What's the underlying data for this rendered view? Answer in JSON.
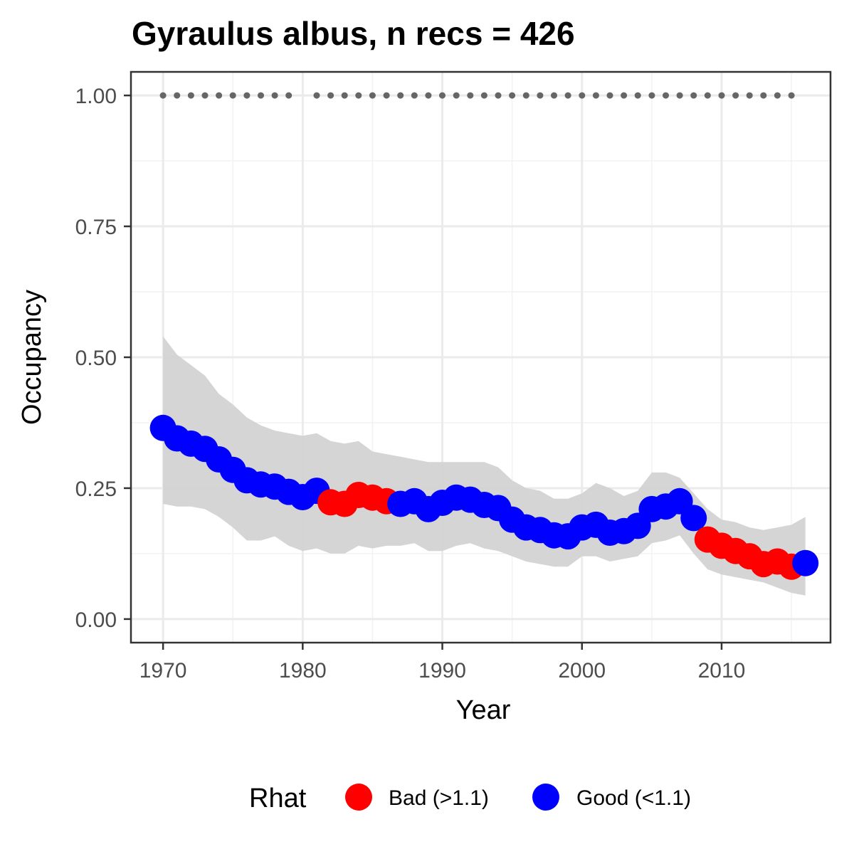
{
  "chart_data": {
    "type": "line",
    "title": "Gyraulus albus, n recs = 426",
    "xlabel": "Year",
    "ylabel": "Occupancy",
    "xlim": [
      1967.2,
      1918.0
    ],
    "ylim": [
      -0.045,
      1.045
    ],
    "x_ticks": [
      1970,
      1980,
      1990,
      2000,
      2010
    ],
    "x_tick_labels": [
      "1970",
      "1980",
      "1990",
      "2000",
      "2010"
    ],
    "y_ticks": [
      0,
      0.25,
      0.5,
      0.75,
      1.0
    ],
    "y_tick_labels": [
      "0.00",
      "0.25",
      "0.50",
      "0.75",
      "1.00"
    ],
    "grid": true,
    "legend": {
      "title": "Rhat",
      "position": "bottom",
      "entries": [
        {
          "label": "Bad (>1.1)",
          "color": "#ff0000"
        },
        {
          "label": "Good (<1.1)",
          "color": "#0000ff"
        }
      ]
    },
    "colors": {
      "bad": "#ff0000",
      "good": "#0000ff",
      "ribbon": "#d3d3d3",
      "record_dots": "#666666"
    },
    "series": [
      {
        "name": "Occupancy",
        "x": [
          1970,
          1971,
          1972,
          1973,
          1974,
          1975,
          1976,
          1977,
          1978,
          1979,
          1980,
          1981,
          1982,
          1983,
          1984,
          1985,
          1986,
          1987,
          1988,
          1989,
          1990,
          1991,
          1992,
          1993,
          1994,
          1995,
          1996,
          1997,
          1998,
          1999,
          2000,
          2001,
          2002,
          2003,
          2004,
          2005,
          2006,
          2007,
          2008,
          2009,
          2010,
          2011,
          2012,
          2013,
          2014,
          2015,
          2016
        ],
        "mean": [
          0.365,
          0.345,
          0.335,
          0.325,
          0.305,
          0.285,
          0.265,
          0.257,
          0.253,
          0.243,
          0.233,
          0.245,
          0.223,
          0.22,
          0.237,
          0.232,
          0.225,
          0.22,
          0.225,
          0.21,
          0.222,
          0.232,
          0.228,
          0.218,
          0.212,
          0.19,
          0.175,
          0.17,
          0.16,
          0.158,
          0.175,
          0.18,
          0.165,
          0.168,
          0.178,
          0.21,
          0.215,
          0.225,
          0.193,
          0.152,
          0.14,
          0.13,
          0.12,
          0.105,
          0.11,
          0.1,
          0.107
        ],
        "lower": [
          0.22,
          0.215,
          0.215,
          0.21,
          0.195,
          0.175,
          0.15,
          0.15,
          0.158,
          0.14,
          0.13,
          0.135,
          0.125,
          0.125,
          0.14,
          0.135,
          0.14,
          0.14,
          0.145,
          0.13,
          0.13,
          0.14,
          0.145,
          0.135,
          0.13,
          0.12,
          0.11,
          0.105,
          0.1,
          0.1,
          0.12,
          0.12,
          0.11,
          0.115,
          0.12,
          0.145,
          0.15,
          0.16,
          0.125,
          0.095,
          0.085,
          0.08,
          0.075,
          0.07,
          0.06,
          0.05,
          0.045
        ],
        "upper": [
          0.54,
          0.505,
          0.485,
          0.465,
          0.43,
          0.41,
          0.385,
          0.37,
          0.36,
          0.355,
          0.35,
          0.355,
          0.34,
          0.335,
          0.34,
          0.32,
          0.315,
          0.31,
          0.305,
          0.3,
          0.3,
          0.3,
          0.3,
          0.3,
          0.29,
          0.265,
          0.25,
          0.245,
          0.23,
          0.23,
          0.24,
          0.26,
          0.25,
          0.235,
          0.245,
          0.28,
          0.28,
          0.27,
          0.24,
          0.21,
          0.19,
          0.185,
          0.175,
          0.17,
          0.175,
          0.18,
          0.195
        ],
        "rhat": [
          "Good",
          "Good",
          "Good",
          "Good",
          "Good",
          "Good",
          "Good",
          "Good",
          "Good",
          "Good",
          "Good",
          "Good",
          "Bad",
          "Bad",
          "Bad",
          "Bad",
          "Bad",
          "Good",
          "Good",
          "Good",
          "Good",
          "Good",
          "Good",
          "Good",
          "Good",
          "Good",
          "Good",
          "Good",
          "Good",
          "Good",
          "Good",
          "Good",
          "Good",
          "Good",
          "Good",
          "Good",
          "Good",
          "Good",
          "Good",
          "Bad",
          "Bad",
          "Bad",
          "Bad",
          "Bad",
          "Bad",
          "Bad",
          "Good"
        ]
      },
      {
        "name": "Record years",
        "x": [
          1970,
          1971,
          1972,
          1973,
          1974,
          1975,
          1976,
          1977,
          1978,
          1979,
          1981,
          1982,
          1983,
          1984,
          1985,
          1986,
          1987,
          1988,
          1989,
          1990,
          1991,
          1992,
          1993,
          1994,
          1995,
          1996,
          1997,
          1998,
          1999,
          2000,
          2001,
          2002,
          2003,
          2004,
          2005,
          2006,
          2007,
          2008,
          2009,
          2010,
          2011,
          2012,
          2013,
          2014,
          2015
        ],
        "y": [
          1,
          1,
          1,
          1,
          1,
          1,
          1,
          1,
          1,
          1,
          1,
          1,
          1,
          1,
          1,
          1,
          1,
          1,
          1,
          1,
          1,
          1,
          1,
          1,
          1,
          1,
          1,
          1,
          1,
          1,
          1,
          1,
          1,
          1,
          1,
          1,
          1,
          1,
          1,
          1,
          1,
          1,
          1,
          1,
          1
        ]
      }
    ]
  }
}
